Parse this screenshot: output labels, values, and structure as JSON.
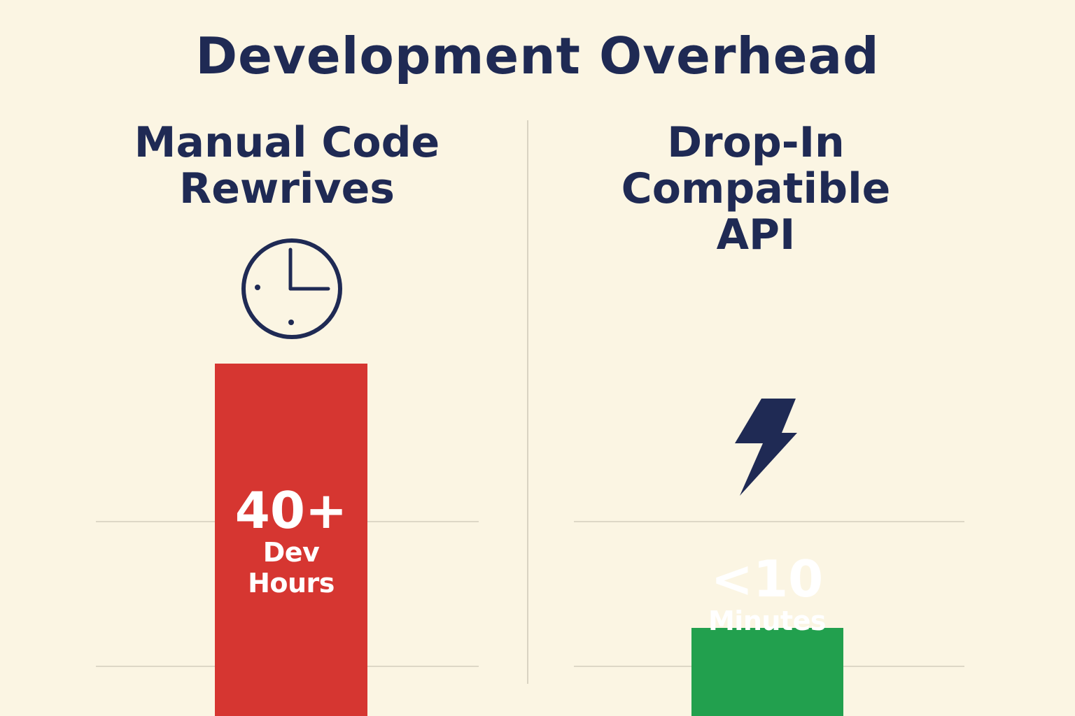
{
  "chart_data": {
    "type": "bar",
    "title": "Development Overhead",
    "categories": [
      "Manual Code Rewrives",
      "Drop-In Compatible API"
    ],
    "category_lines": [
      [
        "Manual Code",
        "Rewrives"
      ],
      [
        "Drop-In",
        "Compatible",
        "API"
      ]
    ],
    "values": [
      40,
      10
    ],
    "value_labels": [
      "40+",
      "<10"
    ],
    "unit_labels": [
      "Dev Hours",
      "Minutes"
    ],
    "colors": [
      "#d63631",
      "#22a04e"
    ],
    "text_color": "#1f2a54",
    "background": "#fbf5e3",
    "icons": [
      "clock-icon",
      "lightning-bolt-icon"
    ],
    "grid": true,
    "legend": "none"
  }
}
